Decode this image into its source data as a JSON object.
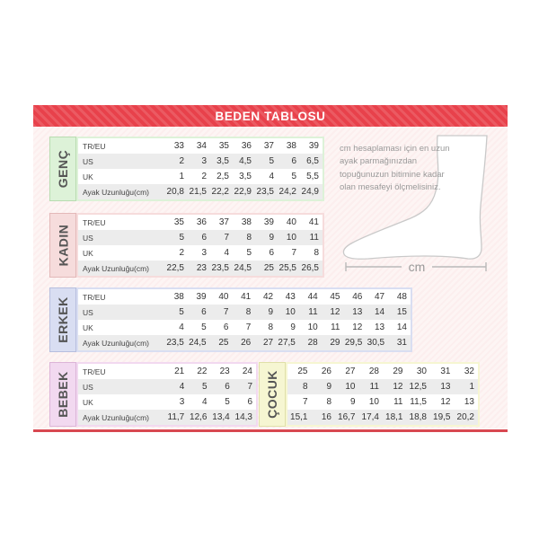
{
  "banner": {
    "title": "BEDEN TABLOSU",
    "color": "#e8414b"
  },
  "row_labels": [
    "TR/EU",
    "US",
    "UK",
    "Ayak Uzunluğu(cm)"
  ],
  "sections": [
    {
      "id": "genc",
      "label": "GENÇ",
      "tint": "#ddf2d8",
      "border": "#b8dcb0",
      "show_row_labels": true,
      "rows": [
        [
          "33",
          "34",
          "35",
          "36",
          "37",
          "38",
          "39"
        ],
        [
          "2",
          "3",
          "3,5",
          "4,5",
          "5",
          "6",
          "6,5"
        ],
        [
          "1",
          "2",
          "2,5",
          "3,5",
          "4",
          "5",
          "5,5"
        ],
        [
          "20,8",
          "21,5",
          "22,2",
          "22,9",
          "23,5",
          "24,2",
          "24,9"
        ]
      ]
    },
    {
      "id": "kadin",
      "label": "KADIN",
      "tint": "#f6dcdc",
      "border": "#e3b8b8",
      "show_row_labels": true,
      "rows": [
        [
          "35",
          "36",
          "37",
          "38",
          "39",
          "40",
          "41"
        ],
        [
          "5",
          "6",
          "7",
          "8",
          "9",
          "10",
          "11"
        ],
        [
          "2",
          "3",
          "4",
          "5",
          "6",
          "7",
          "8"
        ],
        [
          "22,5",
          "23",
          "23,5",
          "24,5",
          "25",
          "25,5",
          "26,5"
        ]
      ]
    },
    {
      "id": "erkek",
      "label": "ERKEK",
      "tint": "#d9def2",
      "border": "#b6bede",
      "show_row_labels": true,
      "rows": [
        [
          "38",
          "39",
          "40",
          "41",
          "42",
          "43",
          "44",
          "45",
          "46",
          "47",
          "48"
        ],
        [
          "5",
          "6",
          "7",
          "8",
          "9",
          "10",
          "11",
          "12",
          "13",
          "14",
          "15"
        ],
        [
          "4",
          "5",
          "6",
          "7",
          "8",
          "9",
          "10",
          "11",
          "12",
          "13",
          "14"
        ],
        [
          "23,5",
          "24,5",
          "25",
          "26",
          "27",
          "27,5",
          "28",
          "29",
          "29,5",
          "30,5",
          "31"
        ]
      ]
    },
    {
      "id": "bebek",
      "label": "BEBEK",
      "tint": "#f2d9f0",
      "border": "#dcb4d8",
      "show_row_labels": true,
      "rows": [
        [
          "21",
          "22",
          "23",
          "24"
        ],
        [
          "4",
          "5",
          "6",
          "7"
        ],
        [
          "3",
          "4",
          "5",
          "6"
        ],
        [
          "11,7",
          "12,6",
          "13,4",
          "14,3"
        ]
      ]
    },
    {
      "id": "cocuk",
      "label": "ÇOCUK",
      "tint": "#f6f6d2",
      "border": "#e0e0a8",
      "show_row_labels": false,
      "rows": [
        [
          "25",
          "26",
          "27",
          "28",
          "29",
          "30",
          "31",
          "32"
        ],
        [
          "8",
          "9",
          "10",
          "11",
          "12",
          "12,5",
          "13",
          "1"
        ],
        [
          "7",
          "8",
          "9",
          "10",
          "11",
          "11,5",
          "12",
          "13"
        ],
        [
          "15,1",
          "16",
          "16,7",
          "17,4",
          "18,1",
          "18,8",
          "19,5",
          "20,2"
        ]
      ]
    }
  ],
  "note": {
    "text": "cm hesaplaması için en uzun ayak parmağınızdan topuğunuzun bitimine kadar olan mesafeyi ölçmelisiniz."
  },
  "measure": {
    "label": "cm"
  }
}
